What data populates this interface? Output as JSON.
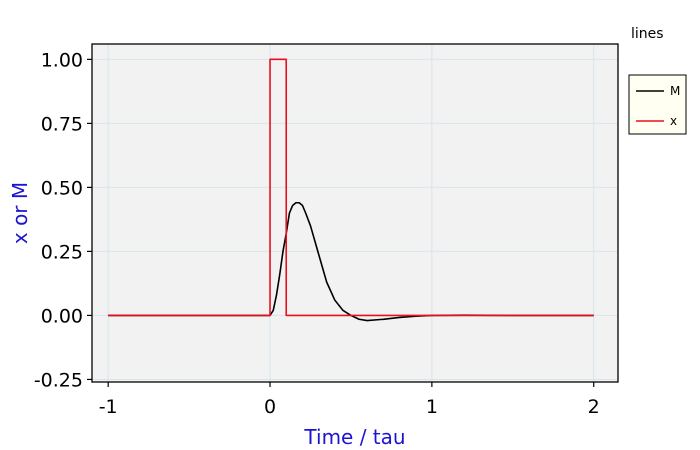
{
  "chart_data": {
    "type": "line",
    "title": "",
    "xlabel": "Time / tau",
    "ylabel": "x or M",
    "xlim": [
      -1.1,
      2.15
    ],
    "ylim": [
      -0.26,
      1.06
    ],
    "xticks": [
      -1,
      0,
      1,
      2
    ],
    "xtick_labels": [
      "-1",
      "0",
      "1",
      "2"
    ],
    "yticks": [
      -0.25,
      0,
      0.25,
      0.5,
      0.75,
      1.0
    ],
    "ytick_labels": [
      "-0.25",
      "0.00",
      "0.25",
      "0.50",
      "0.75",
      "1.00"
    ],
    "grid": true,
    "legend": {
      "title": "lines",
      "placement": "right",
      "entries": [
        {
          "label": "M",
          "color": "#000000"
        },
        {
          "label": "x",
          "color": "#e8101e"
        }
      ]
    },
    "series": [
      {
        "name": "M",
        "color": "#000000",
        "x": [
          -1,
          -0.5,
          0,
          0.02,
          0.04,
          0.06,
          0.08,
          0.1,
          0.12,
          0.14,
          0.16,
          0.18,
          0.2,
          0.22,
          0.25,
          0.3,
          0.35,
          0.4,
          0.45,
          0.5,
          0.55,
          0.6,
          0.7,
          0.8,
          0.9,
          1.0,
          1.2,
          1.5,
          2.0
        ],
        "y": [
          0,
          0,
          0,
          0.02,
          0.08,
          0.16,
          0.25,
          0.32,
          0.4,
          0.43,
          0.44,
          0.44,
          0.43,
          0.4,
          0.35,
          0.24,
          0.13,
          0.06,
          0.02,
          0.0,
          -0.015,
          -0.02,
          -0.015,
          -0.008,
          -0.003,
          0.0,
          0.001,
          0.0,
          0.0
        ]
      },
      {
        "name": "x",
        "color": "#e8101e",
        "x": [
          -1,
          0,
          0,
          0.1,
          0.1,
          2
        ],
        "y": [
          0,
          0,
          1,
          1,
          0,
          0
        ]
      }
    ],
    "colors": {
      "plot_background": "#f2f2f2",
      "grid": "#d6e6ec",
      "axis_label": "#1c14d2",
      "legend_background": "#fffff2"
    }
  }
}
